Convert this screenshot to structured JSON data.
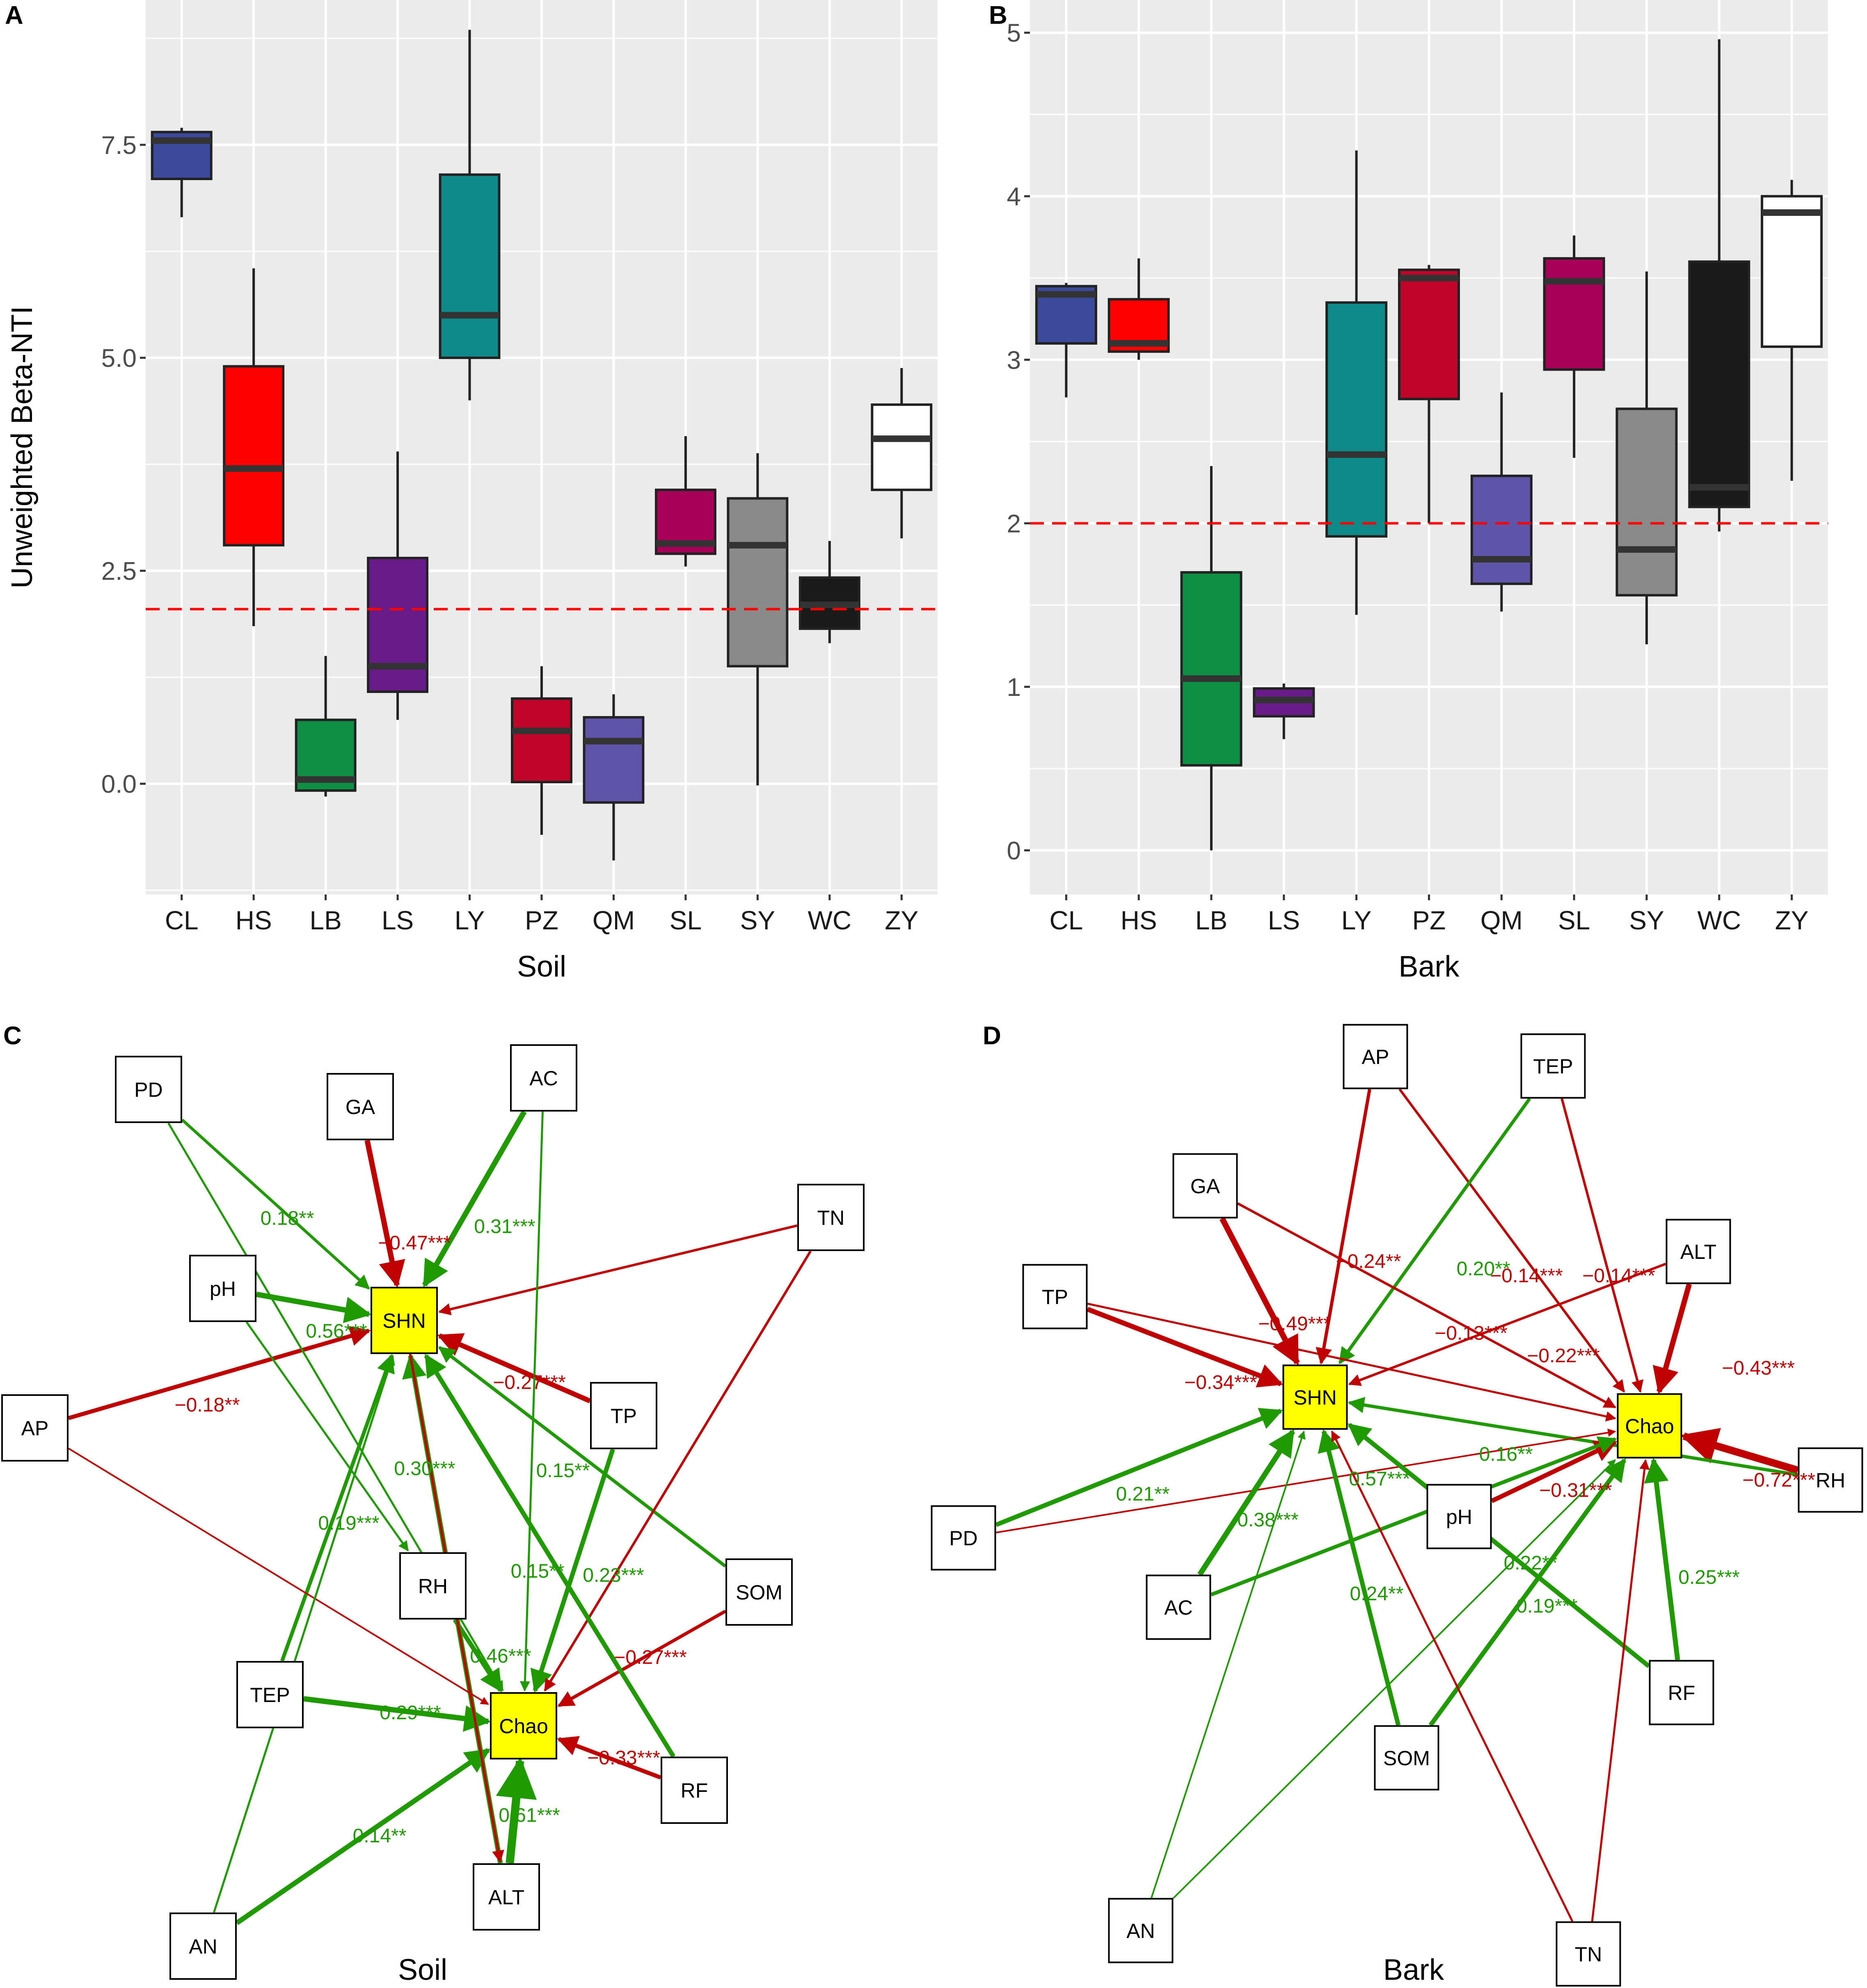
{
  "colors": {
    "positive": "#1f9a00",
    "negative": "#c00000",
    "hub": "#ffff00",
    "reference_line": "#ff0000"
  },
  "chart_data": [
    {
      "panel": "A",
      "type": "box",
      "xlabel": "Soil",
      "ylabel": "Unweighted Beta-NTI",
      "ylim": [
        -1.3,
        9.2
      ],
      "yticks": [
        0.0,
        2.5,
        5.0,
        7.5
      ],
      "ytick_labels": [
        "0.0",
        "2.5",
        "5.0",
        "7.5"
      ],
      "reference_line": 2.05,
      "categories": [
        "CL",
        "HS",
        "LB",
        "LS",
        "LY",
        "PZ",
        "QM",
        "SL",
        "SY",
        "WC",
        "ZY"
      ],
      "box_colors": [
        "#3b4a9a",
        "#ff0000",
        "#0f8f44",
        "#6a1b8a",
        "#0f8a8a",
        "#c0042a",
        "#5f55a8",
        "#a80058",
        "#8a8a8a",
        "#1a1a1a",
        "#ffffff"
      ],
      "boxes": [
        {
          "min": 6.65,
          "q1": 7.1,
          "median": 7.55,
          "q3": 7.65,
          "max": 7.7
        },
        {
          "min": 1.85,
          "q1": 2.8,
          "median": 3.7,
          "q3": 4.9,
          "max": 6.05
        },
        {
          "min": -0.15,
          "q1": -0.08,
          "median": 0.05,
          "q3": 0.75,
          "max": 1.5
        },
        {
          "min": 0.75,
          "q1": 1.08,
          "median": 1.38,
          "q3": 2.65,
          "max": 3.9
        },
        {
          "min": 4.5,
          "q1": 5.0,
          "median": 5.5,
          "q3": 7.15,
          "max": 8.85
        },
        {
          "min": -0.6,
          "q1": 0.02,
          "median": 0.62,
          "q3": 1.0,
          "max": 1.38
        },
        {
          "min": -0.9,
          "q1": -0.22,
          "median": 0.5,
          "q3": 0.78,
          "max": 1.05
        },
        {
          "min": 2.55,
          "q1": 2.7,
          "median": 2.82,
          "q3": 3.45,
          "max": 4.08
        },
        {
          "min": -0.02,
          "q1": 1.38,
          "median": 2.8,
          "q3": 3.35,
          "max": 3.88
        },
        {
          "min": 1.65,
          "q1": 1.82,
          "median": 2.1,
          "q3": 2.42,
          "max": 2.85
        },
        {
          "min": 2.88,
          "q1": 3.45,
          "median": 4.05,
          "q3": 4.45,
          "max": 4.88
        }
      ]
    },
    {
      "panel": "B",
      "type": "box",
      "xlabel": "Bark",
      "ylabel": "",
      "ylim": [
        -0.27,
        5.2
      ],
      "yticks": [
        0,
        1,
        2,
        3,
        4,
        5
      ],
      "ytick_labels": [
        "0",
        "1",
        "2",
        "3",
        "4",
        "5"
      ],
      "reference_line": 2.0,
      "categories": [
        "CL",
        "HS",
        "LB",
        "LS",
        "LY",
        "PZ",
        "QM",
        "SL",
        "SY",
        "WC",
        "ZY"
      ],
      "box_colors": [
        "#3b4a9a",
        "#ff0000",
        "#0f8f44",
        "#6a1b8a",
        "#0f8a8a",
        "#c0042a",
        "#5f55a8",
        "#a80058",
        "#8a8a8a",
        "#1a1a1a",
        "#ffffff"
      ],
      "boxes": [
        {
          "min": 2.77,
          "q1": 3.1,
          "median": 3.4,
          "q3": 3.45,
          "max": 3.47
        },
        {
          "min": 3.0,
          "q1": 3.05,
          "median": 3.1,
          "q3": 3.37,
          "max": 3.62
        },
        {
          "min": 0.0,
          "q1": 0.52,
          "median": 1.05,
          "q3": 1.7,
          "max": 2.35
        },
        {
          "min": 0.68,
          "q1": 0.82,
          "median": 0.92,
          "q3": 0.99,
          "max": 1.02
        },
        {
          "min": 1.44,
          "q1": 1.92,
          "median": 2.42,
          "q3": 3.35,
          "max": 4.28
        },
        {
          "min": 2.0,
          "q1": 2.76,
          "median": 3.5,
          "q3": 3.55,
          "max": 3.58
        },
        {
          "min": 1.46,
          "q1": 1.63,
          "median": 1.78,
          "q3": 2.29,
          "max": 2.8
        },
        {
          "min": 2.4,
          "q1": 2.94,
          "median": 3.48,
          "q3": 3.62,
          "max": 3.76
        },
        {
          "min": 1.26,
          "q1": 1.56,
          "median": 1.84,
          "q3": 2.7,
          "max": 3.54
        },
        {
          "min": 1.95,
          "q1": 2.1,
          "median": 2.22,
          "q3": 3.6,
          "max": 4.96
        },
        {
          "min": 2.26,
          "q1": 3.08,
          "median": 3.9,
          "q3": 4.0,
          "max": 4.1
        }
      ]
    },
    {
      "panel": "C",
      "type": "network",
      "title": "Soil",
      "hubs": [
        "SHN",
        "Chao"
      ],
      "nodes": [
        "PD",
        "GA",
        "AC",
        "TN",
        "pH",
        "SHN",
        "AP",
        "TP",
        "RH",
        "SOM",
        "TEP",
        "Chao",
        "RF",
        "AN",
        "ALT"
      ],
      "edges": [
        {
          "from": "PD",
          "to": "SHN",
          "sign": "positive",
          "label": "0.18**"
        },
        {
          "from": "GA",
          "to": "SHN",
          "sign": "negative",
          "label": "−0.47***"
        },
        {
          "from": "AC",
          "to": "SHN",
          "sign": "positive",
          "label": "0.31***"
        },
        {
          "from": "TN",
          "to": "SHN",
          "sign": "negative",
          "label": ""
        },
        {
          "from": "pH",
          "to": "SHN",
          "sign": "positive",
          "label": "0.56***"
        },
        {
          "from": "AP",
          "to": "SHN",
          "sign": "negative",
          "label": "−0.18**"
        },
        {
          "from": "TP",
          "to": "SHN",
          "sign": "negative",
          "label": "−0.27***"
        },
        {
          "from": "ALT",
          "to": "SHN",
          "sign": "positive",
          "label": "0.30***"
        },
        {
          "from": "SOM",
          "to": "SHN",
          "sign": "positive",
          "label": "0.15**"
        },
        {
          "from": "TEP",
          "to": "SHN",
          "sign": "positive",
          "label": "0.19***"
        },
        {
          "from": "RH",
          "to": "Chao",
          "sign": "positive",
          "label": "0.46***"
        },
        {
          "from": "TP",
          "to": "Chao",
          "sign": "positive",
          "label": "0.23***"
        },
        {
          "from": "SOM",
          "to": "Chao",
          "sign": "negative",
          "label": "−0.27***"
        },
        {
          "from": "TEP",
          "to": "Chao",
          "sign": "positive",
          "label": "0.29***"
        },
        {
          "from": "RF",
          "to": "Chao",
          "sign": "negative",
          "label": "−0.33***"
        },
        {
          "from": "AN",
          "to": "Chao",
          "sign": "positive",
          "label": "0.14**"
        },
        {
          "from": "ALT",
          "to": "Chao",
          "sign": "positive",
          "label": "0.61***"
        },
        {
          "from": "PD",
          "to": "Chao",
          "sign": "positive",
          "label": ""
        },
        {
          "from": "AC",
          "to": "Chao",
          "sign": "positive",
          "label": ""
        },
        {
          "from": "TN",
          "to": "Chao",
          "sign": "negative",
          "label": ""
        },
        {
          "from": "AP",
          "to": "Chao",
          "sign": "negative",
          "label": ""
        },
        {
          "from": "RF",
          "to": "SHN",
          "sign": "positive",
          "label": "0.15**"
        },
        {
          "from": "AN",
          "to": "SHN",
          "sign": "positive",
          "label": ""
        },
        {
          "from": "SHN",
          "to": "ALT",
          "sign": "negative",
          "label": ""
        },
        {
          "from": "pH",
          "to": "RH",
          "sign": "positive",
          "label": ""
        }
      ]
    },
    {
      "panel": "D",
      "type": "network",
      "title": "Bark",
      "hubs": [
        "SHN",
        "Chao"
      ],
      "nodes": [
        "AP",
        "TEP",
        "GA",
        "ALT",
        "TP",
        "SHN",
        "Chao",
        "RH",
        "PD",
        "pH",
        "AC",
        "RF",
        "SOM",
        "AN",
        "TN"
      ],
      "edges": [
        {
          "from": "AP",
          "to": "SHN",
          "sign": "negative",
          "label": "−0.24**"
        },
        {
          "from": "AP",
          "to": "Chao",
          "sign": "negative",
          "label": "−0.14***"
        },
        {
          "from": "TEP",
          "to": "SHN",
          "sign": "positive",
          "label": "0.20**"
        },
        {
          "from": "TEP",
          "to": "Chao",
          "sign": "negative",
          "label": "−0.14***"
        },
        {
          "from": "GA",
          "to": "SHN",
          "sign": "negative",
          "label": "−0.49***"
        },
        {
          "from": "GA",
          "to": "Chao",
          "sign": "negative",
          "label": "−0.13***"
        },
        {
          "from": "ALT",
          "to": "SHN",
          "sign": "negative",
          "label": "−0.22***"
        },
        {
          "from": "ALT",
          "to": "Chao",
          "sign": "negative",
          "label": "−0.43***"
        },
        {
          "from": "TP",
          "to": "SHN",
          "sign": "negative",
          "label": "−0.34***"
        },
        {
          "from": "TP",
          "to": "Chao",
          "sign": "negative",
          "label": ""
        },
        {
          "from": "RH",
          "to": "Chao",
          "sign": "negative",
          "label": "−0.72***"
        },
        {
          "from": "RH",
          "to": "SHN",
          "sign": "positive",
          "label": "0.16**"
        },
        {
          "from": "PD",
          "to": "SHN",
          "sign": "positive",
          "label": "0.21**"
        },
        {
          "from": "PD",
          "to": "Chao",
          "sign": "negative",
          "label": ""
        },
        {
          "from": "pH",
          "to": "Chao",
          "sign": "negative",
          "label": "−0.31***"
        },
        {
          "from": "AC",
          "to": "SHN",
          "sign": "positive",
          "label": "0.38***"
        },
        {
          "from": "AC",
          "to": "Chao",
          "sign": "positive",
          "label": "0.57***"
        },
        {
          "from": "RF",
          "to": "SHN",
          "sign": "positive",
          "label": "0.22**"
        },
        {
          "from": "RF",
          "to": "Chao",
          "sign": "positive",
          "label": "0.25***"
        },
        {
          "from": "SOM",
          "to": "SHN",
          "sign": "positive",
          "label": "0.24**"
        },
        {
          "from": "SOM",
          "to": "Chao",
          "sign": "positive",
          "label": "0.19***"
        },
        {
          "from": "AN",
          "to": "SHN",
          "sign": "positive",
          "label": ""
        },
        {
          "from": "AN",
          "to": "Chao",
          "sign": "positive",
          "label": ""
        },
        {
          "from": "TN",
          "to": "SHN",
          "sign": "negative",
          "label": ""
        },
        {
          "from": "TN",
          "to": "Chao",
          "sign": "negative",
          "label": ""
        }
      ]
    }
  ]
}
